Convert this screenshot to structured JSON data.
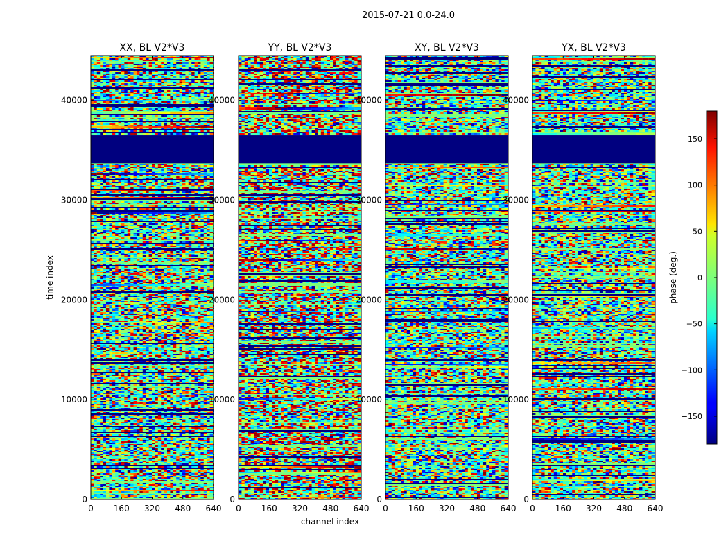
{
  "figure": {
    "suptitle": "2015-07-21 0.0-24.0"
  },
  "chart_data": {
    "type": "heatmap",
    "xlabel": "channel index",
    "ylabel": "time index",
    "xlim": [
      0,
      640
    ],
    "ylim": [
      0,
      44500
    ],
    "xticks": [
      0,
      160,
      320,
      480,
      640
    ],
    "yticks": [
      0,
      10000,
      20000,
      30000,
      40000
    ],
    "panels": [
      {
        "title": "XX, BL V2*V3",
        "seed": 11,
        "warm_bias": 0.55
      },
      {
        "title": "YY, BL V2*V3",
        "seed": 23,
        "warm_bias": 0.85
      },
      {
        "title": "XY, BL V2*V3",
        "seed": 37,
        "warm_bias": 0.25
      },
      {
        "title": "YX, BL V2*V3",
        "seed": 53,
        "warm_bias": 0.35
      }
    ],
    "flagged_time_range": [
      33700,
      36500
    ],
    "colorbar": {
      "label": "phase (deg.)",
      "vmin": -180,
      "vmax": 180,
      "ticks": [
        -150,
        -100,
        -50,
        0,
        50,
        100,
        150
      ],
      "colormap": "jet"
    }
  }
}
